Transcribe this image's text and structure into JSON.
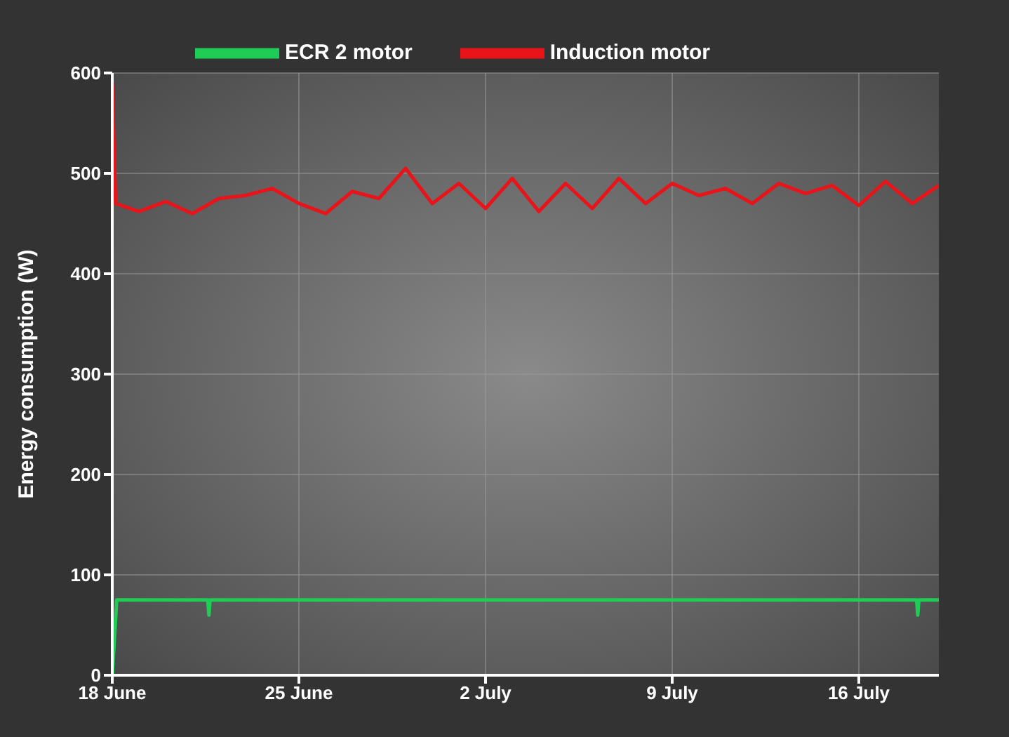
{
  "chart_data": {
    "type": "line",
    "ylabel": "Energy consumption (W)",
    "ylim": [
      0,
      600
    ],
    "yticks": [
      0,
      100,
      200,
      300,
      400,
      500,
      600
    ],
    "xlim": [
      "--06-18",
      "--07-19"
    ],
    "xticks": [
      {
        "value": "--06-18",
        "label": "18 June"
      },
      {
        "value": "--06-25",
        "label": "25 June"
      },
      {
        "value": "--07-02",
        "label": "2 July"
      },
      {
        "value": "--07-09",
        "label": "9 July"
      },
      {
        "value": "--07-16",
        "label": "16 July"
      }
    ],
    "grid": true,
    "legend": "top",
    "marker": "none",
    "line_style": "solid",
    "series": [
      {
        "name": "ECR 2 motor",
        "color": "#1fcc55",
        "x": [
          "--06-18T00:00",
          "--06-18T04:00",
          "--06-21T14:00",
          "--06-21T15:00",
          "--06-21T16:00",
          "--07-18T04:00",
          "--07-18T05:00",
          "--07-18T06:00",
          "--07-19"
        ],
        "values": [
          0,
          75,
          75,
          60,
          75,
          75,
          60,
          75,
          75
        ]
      },
      {
        "name": "Induction motor",
        "color": "#e8141a",
        "x": [
          "--06-18T00:00",
          "--06-18T03:00",
          "--06-19",
          "--06-20",
          "--06-21",
          "--06-22",
          "--06-23",
          "--06-24",
          "--06-25",
          "--06-26",
          "--06-27",
          "--06-28",
          "--06-29",
          "--06-30",
          "--07-01",
          "--07-02",
          "--07-03",
          "--07-04",
          "--07-05",
          "--07-06",
          "--07-07",
          "--07-08",
          "--07-09",
          "--07-10",
          "--07-11",
          "--07-12",
          "--07-13",
          "--07-14",
          "--07-15",
          "--07-16",
          "--07-17",
          "--07-18",
          "--07-19"
        ],
        "values": [
          590,
          470,
          462,
          472,
          460,
          475,
          478,
          485,
          470,
          460,
          482,
          475,
          505,
          470,
          490,
          465,
          495,
          462,
          490,
          465,
          495,
          470,
          490,
          478,
          485,
          470,
          490,
          480,
          488,
          468,
          492,
          470,
          488
        ]
      }
    ]
  }
}
